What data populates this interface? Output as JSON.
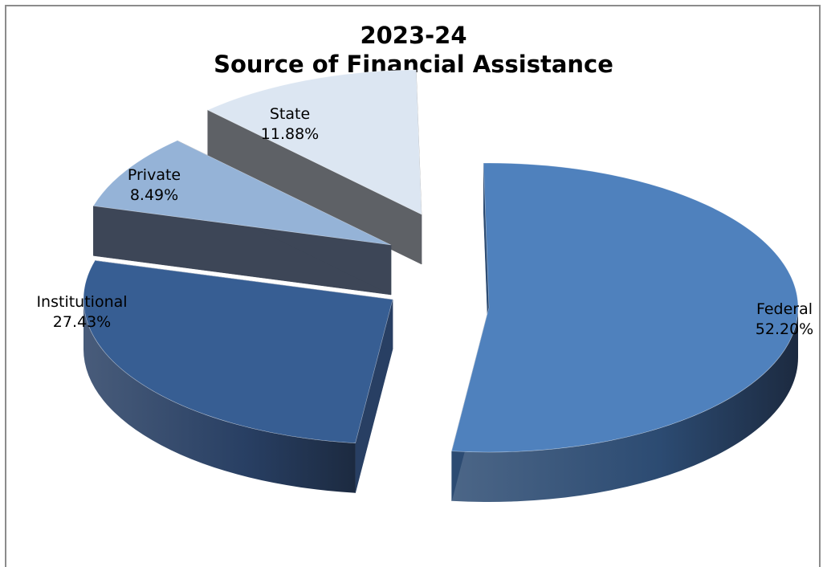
{
  "chart_data": {
    "type": "pie",
    "title_lines": [
      "2023-24",
      "Source of Financial Assistance"
    ],
    "slices": [
      {
        "name": "Federal",
        "value": 52.2,
        "label": "52.20%",
        "color": "#4f81bd",
        "side": "#2c4b72"
      },
      {
        "name": "Institutional",
        "value": 27.43,
        "label": "27.43%",
        "color": "#375e93",
        "side": "#283f63"
      },
      {
        "name": "Private",
        "value": 8.49,
        "label": "8.49%",
        "color": "#95b3d7",
        "side": "#3d4657"
      },
      {
        "name": "State",
        "value": 11.88,
        "label": "11.88%",
        "color": "#dce6f2",
        "side": "#5e6166"
      }
    ],
    "legend": "none",
    "exploded": true,
    "three_d": true
  }
}
